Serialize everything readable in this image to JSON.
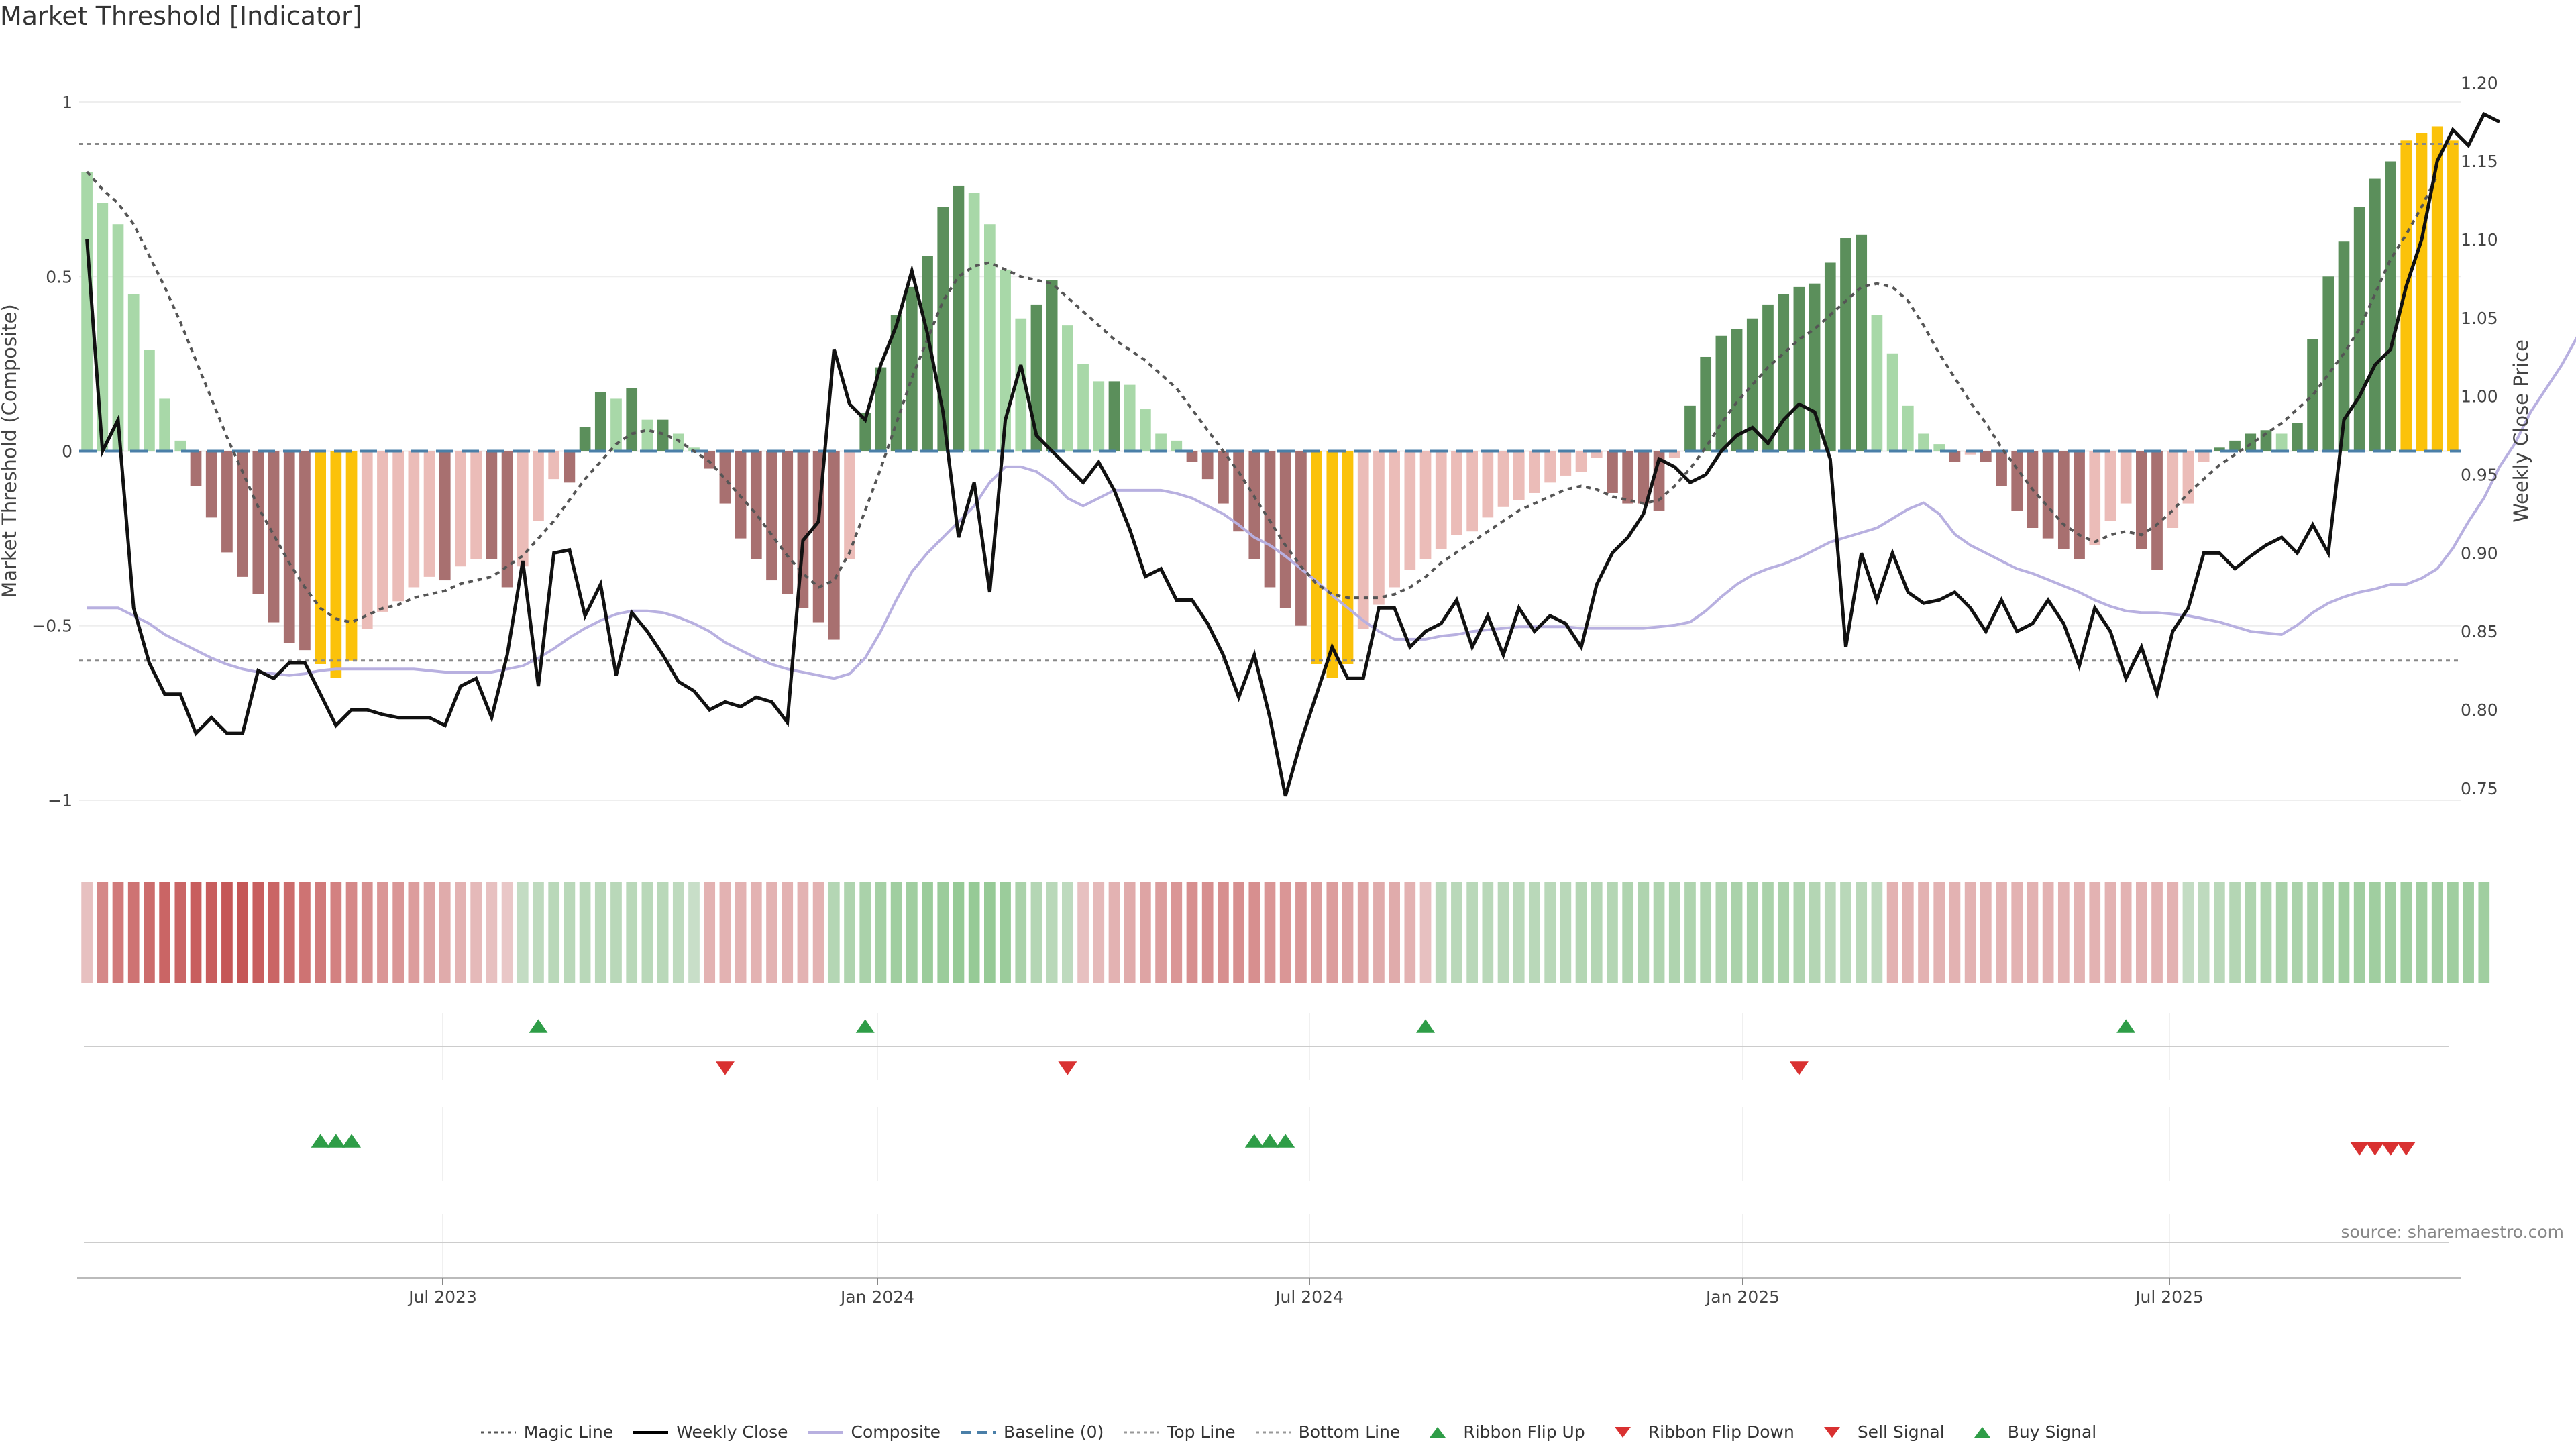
{
  "title": "Market Threshold [Indicator]",
  "source": "source: sharemaestro.com",
  "legend": [
    {
      "label": "Magic Line",
      "swatch": "dotted-line",
      "color": "#555555"
    },
    {
      "label": "Weekly Close",
      "swatch": "line",
      "color": "#000000"
    },
    {
      "label": "Composite",
      "swatch": "line",
      "color": "#b8b0e0"
    },
    {
      "label": "Baseline (0)",
      "swatch": "dashed-line",
      "color": "#4a7fa8"
    },
    {
      "label": "Top Line",
      "swatch": "dotted-line",
      "color": "#999999"
    },
    {
      "label": "Bottom Line",
      "swatch": "dotted-line",
      "color": "#999999"
    },
    {
      "label": "Ribbon Flip Up",
      "swatch": "triangle-up",
      "color": "#2e9d47"
    },
    {
      "label": "Ribbon Flip Down",
      "swatch": "triangle-down",
      "color": "#d93131"
    },
    {
      "label": "Sell Signal",
      "swatch": "triangle-down",
      "color": "#d93131"
    },
    {
      "label": "Buy Signal",
      "swatch": "triangle-up",
      "color": "#2e9d47"
    }
  ],
  "chart_data": {
    "type": "bar",
    "ylabel_left": "Market Threshold (Composite)",
    "ylabel_right": "Weekly Close Price",
    "ylim_left": [
      -1.1,
      1.1
    ],
    "yticks_left": [
      "1",
      "0.5",
      "0",
      "−0.5",
      "−1"
    ],
    "ylim_right": [
      0.72,
      1.21
    ],
    "yticks_right": [
      "1.20",
      "1.15",
      "1.10",
      "1.05",
      "1.00",
      "0.95",
      "0.90",
      "0.85",
      "0.80",
      "0.75"
    ],
    "xticks": [
      "Jul 2023",
      "Jan 2024",
      "Jul 2024",
      "Jan 2025",
      "Jul 2025"
    ],
    "top_line": 0.88,
    "bottom_line": -0.6,
    "colors": {
      "strong_up": "#5b8f5b",
      "weak_up": "#a8d8a8",
      "strong_down": "#a87070",
      "weak_down": "#ebbcb8",
      "extreme": "#fbc20a",
      "magic": "#555555",
      "close": "#111111",
      "composite": "#b8b0e0",
      "baseline": "#4a7fa8",
      "buy": "#2e9d47",
      "sell": "#d93131"
    },
    "series": [
      {
        "name": "Market Threshold (bars)",
        "values": [
          0.8,
          0.71,
          0.65,
          0.45,
          0.29,
          0.15,
          0.03,
          -0.1,
          -0.19,
          -0.29,
          -0.36,
          -0.41,
          -0.49,
          -0.55,
          -0.57,
          -0.61,
          -0.65,
          -0.6,
          -0.51,
          -0.46,
          -0.43,
          -0.39,
          -0.36,
          -0.37,
          -0.33,
          -0.31,
          -0.31,
          -0.39,
          -0.33,
          -0.2,
          -0.08,
          -0.09,
          0.07,
          0.17,
          0.15,
          0.18,
          0.09,
          0.09,
          0.05,
          0.01,
          -0.05,
          -0.15,
          -0.25,
          -0.31,
          -0.37,
          -0.41,
          -0.45,
          -0.49,
          -0.54,
          -0.31,
          0.11,
          0.24,
          0.39,
          0.47,
          0.56,
          0.7,
          0.76,
          0.74,
          0.65,
          0.52,
          0.38,
          0.42,
          0.49,
          0.36,
          0.25,
          0.2,
          0.2,
          0.19,
          0.12,
          0.05,
          0.03,
          -0.03,
          -0.08,
          -0.15,
          -0.23,
          -0.31,
          -0.39,
          -0.45,
          -0.5,
          -0.61,
          -0.65,
          -0.61,
          -0.51,
          -0.44,
          -0.39,
          -0.34,
          -0.31,
          -0.28,
          -0.24,
          -0.23,
          -0.19,
          -0.16,
          -0.14,
          -0.12,
          -0.09,
          -0.07,
          -0.06,
          -0.02,
          -0.12,
          -0.15,
          -0.15,
          -0.17,
          -0.02,
          0.13,
          0.27,
          0.33,
          0.35,
          0.38,
          0.42,
          0.45,
          0.47,
          0.48,
          0.54,
          0.61,
          0.62,
          0.39,
          0.28,
          0.13,
          0.05,
          0.02,
          -0.03,
          -0.01,
          -0.03,
          -0.1,
          -0.17,
          -0.22,
          -0.25,
          -0.28,
          -0.31,
          -0.27,
          -0.2,
          -0.15,
          -0.28,
          -0.34,
          -0.22,
          -0.15,
          -0.03,
          0.01,
          0.03,
          0.05,
          0.06,
          0.05,
          0.08,
          0.32,
          0.5,
          0.6,
          0.7,
          0.78,
          0.83,
          0.89,
          0.91,
          0.93,
          0.89
        ]
      },
      {
        "name": "Weekly Close",
        "values": [
          1.1,
          0.965,
          0.985,
          0.865,
          0.83,
          0.81,
          0.81,
          0.785,
          0.795,
          0.785,
          0.785,
          0.825,
          0.82,
          0.83,
          0.83,
          0.81,
          0.79,
          0.8,
          0.8,
          0.797,
          0.795,
          0.795,
          0.795,
          0.79,
          0.815,
          0.82,
          0.795,
          0.835,
          0.895,
          0.815,
          0.9,
          0.902,
          0.86,
          0.88,
          0.822,
          0.862,
          0.85,
          0.835,
          0.818,
          0.812,
          0.8,
          0.805,
          0.802,
          0.808,
          0.805,
          0.792,
          0.908,
          0.92,
          1.03,
          0.995,
          0.985,
          1.02,
          1.045,
          1.08,
          1.04,
          0.99,
          0.91,
          0.945,
          0.875,
          0.985,
          1.02,
          0.975,
          0.965,
          0.955,
          0.945,
          0.958,
          0.94,
          0.915,
          0.885,
          0.89,
          0.87,
          0.87,
          0.855,
          0.835,
          0.808,
          0.835,
          0.795,
          0.745,
          0.78,
          0.81,
          0.84,
          0.82,
          0.82,
          0.865,
          0.865,
          0.84,
          0.85,
          0.855,
          0.87,
          0.84,
          0.86,
          0.835,
          0.865,
          0.85,
          0.86,
          0.855,
          0.84,
          0.88,
          0.9,
          0.91,
          0.925,
          0.96,
          0.955,
          0.945,
          0.95,
          0.965,
          0.975,
          0.98,
          0.97,
          0.985,
          0.995,
          0.99,
          0.96,
          0.84,
          0.9,
          0.87,
          0.9,
          0.875,
          0.868,
          0.87,
          0.875,
          0.865,
          0.85,
          0.87,
          0.85,
          0.855,
          0.87,
          0.855,
          0.828,
          0.865,
          0.85,
          0.82,
          0.84,
          0.81,
          0.85,
          0.865,
          0.9,
          0.9,
          0.89,
          0.898,
          0.905,
          0.91,
          0.9,
          0.918,
          0.9,
          0.985,
          1.0,
          1.02,
          1.03,
          1.07,
          1.1,
          1.15,
          1.17,
          1.16,
          1.18,
          1.175
        ]
      },
      {
        "name": "Magic Line",
        "values": [
          0.8,
          0.75,
          0.71,
          0.65,
          0.56,
          0.47,
          0.37,
          0.26,
          0.15,
          0.04,
          -0.06,
          -0.16,
          -0.24,
          -0.32,
          -0.39,
          -0.45,
          -0.48,
          -0.49,
          -0.47,
          -0.45,
          -0.44,
          -0.42,
          -0.41,
          -0.4,
          -0.38,
          -0.37,
          -0.36,
          -0.33,
          -0.3,
          -0.25,
          -0.2,
          -0.14,
          -0.08,
          -0.03,
          0.02,
          0.05,
          0.06,
          0.05,
          0.03,
          0.0,
          -0.03,
          -0.08,
          -0.13,
          -0.18,
          -0.24,
          -0.3,
          -0.35,
          -0.39,
          -0.37,
          -0.29,
          -0.17,
          -0.05,
          0.08,
          0.21,
          0.32,
          0.43,
          0.5,
          0.53,
          0.54,
          0.52,
          0.5,
          0.49,
          0.48,
          0.44,
          0.4,
          0.36,
          0.32,
          0.29,
          0.26,
          0.22,
          0.18,
          0.12,
          0.06,
          0.0,
          -0.06,
          -0.13,
          -0.2,
          -0.27,
          -0.33,
          -0.38,
          -0.41,
          -0.42,
          -0.42,
          -0.42,
          -0.41,
          -0.39,
          -0.36,
          -0.32,
          -0.29,
          -0.26,
          -0.23,
          -0.2,
          -0.17,
          -0.15,
          -0.13,
          -0.11,
          -0.1,
          -0.11,
          -0.13,
          -0.14,
          -0.15,
          -0.14,
          -0.1,
          -0.05,
          0.01,
          0.08,
          0.14,
          0.19,
          0.24,
          0.28,
          0.32,
          0.35,
          0.39,
          0.43,
          0.47,
          0.48,
          0.47,
          0.43,
          0.36,
          0.28,
          0.21,
          0.14,
          0.08,
          0.01,
          -0.05,
          -0.11,
          -0.16,
          -0.21,
          -0.24,
          -0.26,
          -0.24,
          -0.23,
          -0.24,
          -0.21,
          -0.17,
          -0.12,
          -0.08,
          -0.04,
          -0.01,
          0.02,
          0.05,
          0.08,
          0.12,
          0.16,
          0.22,
          0.28,
          0.35,
          0.45,
          0.55,
          0.62,
          0.7,
          0.79
        ]
      },
      {
        "name": "Composite",
        "values": [
          0.865,
          0.865,
          0.865,
          0.86,
          0.855,
          0.848,
          0.843,
          0.838,
          0.833,
          0.829,
          0.826,
          0.824,
          0.823,
          0.822,
          0.823,
          0.825,
          0.826,
          0.826,
          0.826,
          0.826,
          0.826,
          0.826,
          0.825,
          0.824,
          0.824,
          0.824,
          0.824,
          0.826,
          0.828,
          0.833,
          0.839,
          0.846,
          0.852,
          0.857,
          0.861,
          0.863,
          0.863,
          0.862,
          0.859,
          0.855,
          0.85,
          0.843,
          0.838,
          0.833,
          0.829,
          0.826,
          0.824,
          0.822,
          0.82,
          0.823,
          0.833,
          0.85,
          0.87,
          0.888,
          0.9,
          0.91,
          0.92,
          0.93,
          0.945,
          0.955,
          0.955,
          0.952,
          0.945,
          0.935,
          0.93,
          0.935,
          0.94,
          0.94,
          0.94,
          0.94,
          0.938,
          0.935,
          0.93,
          0.925,
          0.918,
          0.91,
          0.905,
          0.898,
          0.89,
          0.882,
          0.873,
          0.865,
          0.857,
          0.85,
          0.845,
          0.845,
          0.845,
          0.847,
          0.848,
          0.85,
          0.851,
          0.852,
          0.853,
          0.853,
          0.853,
          0.853,
          0.852,
          0.852,
          0.852,
          0.852,
          0.852,
          0.853,
          0.854,
          0.856,
          0.863,
          0.872,
          0.88,
          0.886,
          0.89,
          0.893,
          0.897,
          0.902,
          0.907,
          0.91,
          0.913,
          0.916,
          0.922,
          0.928,
          0.932,
          0.925,
          0.912,
          0.905,
          0.9,
          0.895,
          0.89,
          0.887,
          0.883,
          0.879,
          0.875,
          0.87,
          0.866,
          0.863,
          0.862,
          0.862,
          0.861,
          0.86,
          0.858,
          0.856,
          0.853,
          0.85,
          0.849,
          0.848,
          0.854,
          0.862,
          0.868,
          0.872,
          0.875,
          0.877,
          0.88,
          0.88,
          0.884,
          0.89,
          0.903,
          0.92,
          0.935,
          0.955,
          0.97,
          0.99,
          1.005,
          1.02,
          1.038,
          1.05
        ]
      }
    ],
    "ribbon": {
      "name": "Ribbon",
      "values": [
        -0.2,
        -0.6,
        -0.7,
        -0.75,
        -0.8,
        -0.85,
        -0.85,
        -0.9,
        -0.9,
        -0.95,
        -0.95,
        -0.9,
        -0.85,
        -0.8,
        -0.75,
        -0.7,
        -0.65,
        -0.6,
        -0.55,
        -0.5,
        -0.5,
        -0.45,
        -0.4,
        -0.35,
        -0.3,
        -0.25,
        -0.2,
        -0.15,
        0.25,
        0.3,
        0.35,
        0.35,
        0.35,
        0.35,
        0.35,
        0.35,
        0.35,
        0.35,
        0.3,
        0.2,
        -0.3,
        -0.3,
        -0.3,
        -0.3,
        -0.3,
        -0.3,
        -0.3,
        -0.3,
        0.4,
        0.45,
        0.5,
        0.55,
        0.6,
        0.6,
        0.65,
        0.65,
        0.7,
        0.7,
        0.7,
        0.65,
        0.5,
        0.4,
        0.35,
        0.3,
        -0.2,
        -0.25,
        -0.3,
        -0.35,
        -0.4,
        -0.45,
        -0.5,
        -0.55,
        -0.55,
        -0.55,
        -0.55,
        -0.55,
        -0.5,
        -0.5,
        -0.5,
        -0.45,
        -0.45,
        -0.4,
        -0.4,
        -0.35,
        -0.35,
        -0.3,
        -0.2,
        0.35,
        0.35,
        0.35,
        0.35,
        0.35,
        0.35,
        0.35,
        0.35,
        0.35,
        0.4,
        0.4,
        0.4,
        0.45,
        0.45,
        0.45,
        0.45,
        0.45,
        0.45,
        0.45,
        0.5,
        0.5,
        0.5,
        0.5,
        0.45,
        0.4,
        0.35,
        0.35,
        0.35,
        0.3,
        -0.3,
        -0.3,
        -0.3,
        -0.3,
        -0.3,
        -0.3,
        -0.3,
        -0.3,
        -0.3,
        -0.3,
        -0.3,
        -0.3,
        -0.3,
        -0.3,
        -0.3,
        -0.3,
        -0.3,
        -0.3,
        -0.3,
        0.25,
        0.3,
        0.35,
        0.4,
        0.45,
        0.45,
        0.5,
        0.5,
        0.5,
        0.55,
        0.6,
        0.6,
        0.6,
        0.6,
        0.6,
        0.6,
        0.6,
        0.6,
        0.6,
        0.6
      ]
    },
    "ribbon_flip_up": [
      29,
      50,
      86,
      131
    ],
    "ribbon_flip_down": [
      41,
      63,
      110
    ],
    "buy_signal": [
      15,
      16,
      17,
      75,
      76,
      77
    ],
    "sell_signal": [
      146,
      147,
      148,
      149
    ]
  }
}
